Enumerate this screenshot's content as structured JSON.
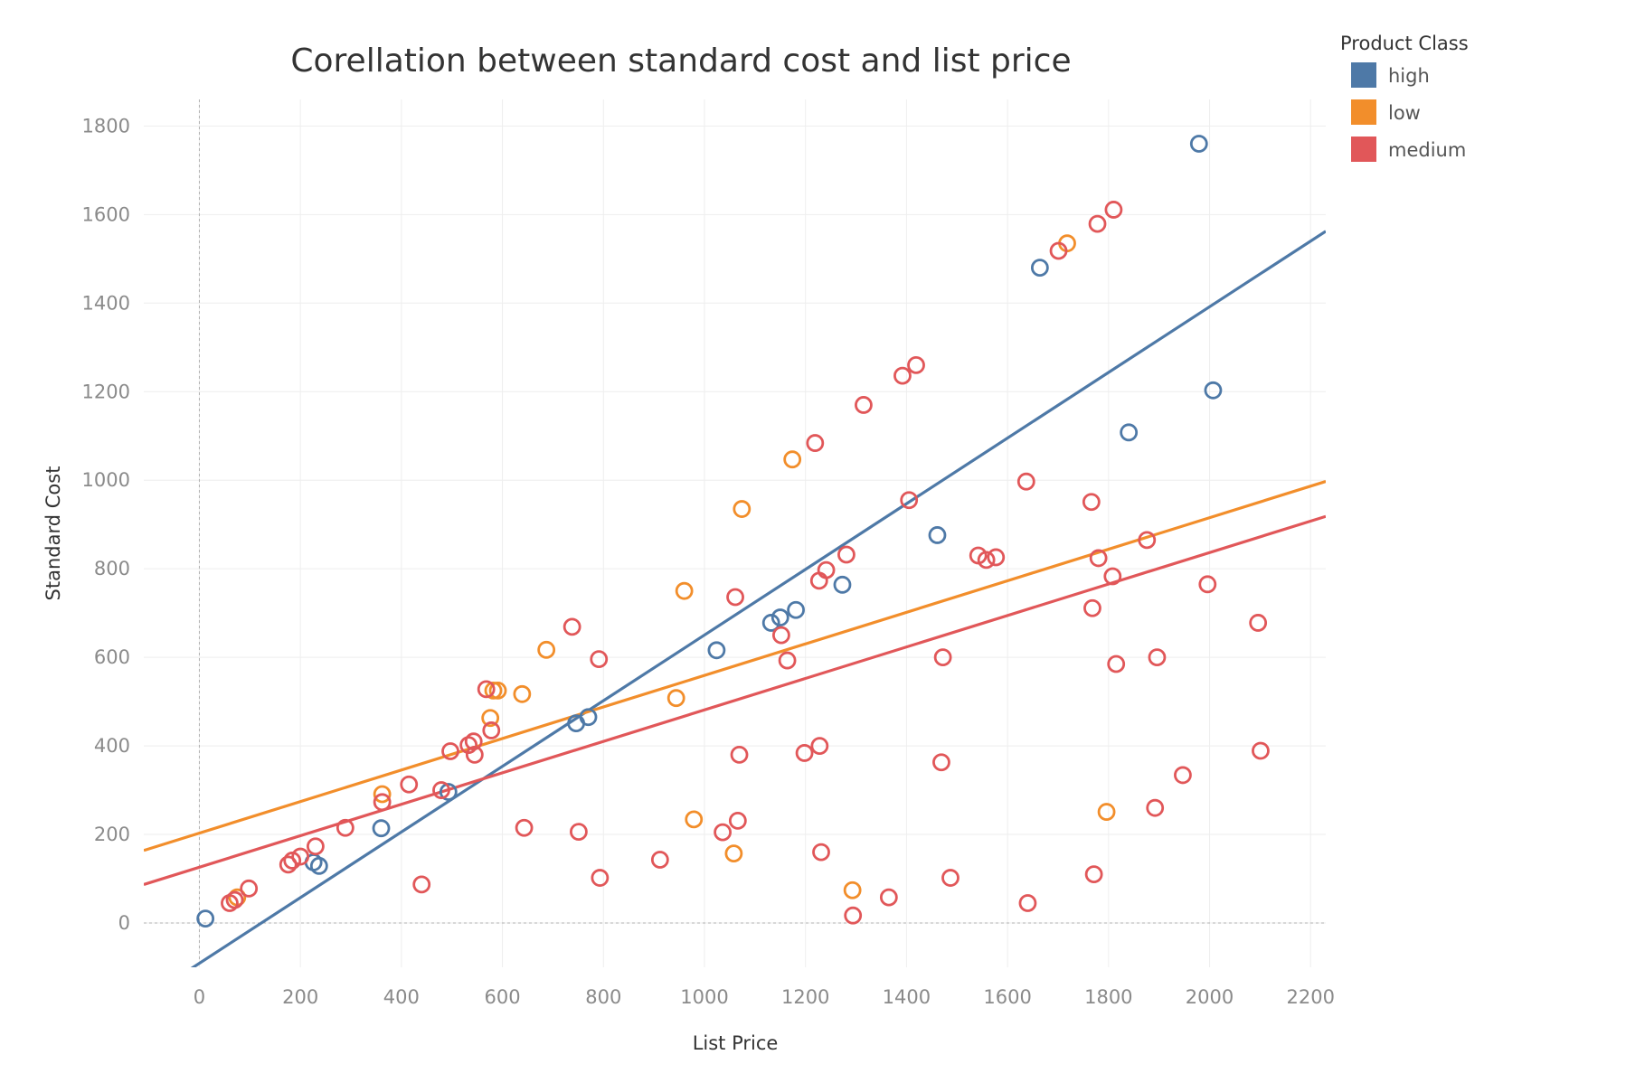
{
  "chart_data": {
    "type": "scatter",
    "title": "Corellation between standard cost and list price",
    "xlabel": "List Price",
    "ylabel": "Standard Cost",
    "xlim": [
      -110,
      2230
    ],
    "ylim": [
      -100,
      1860
    ],
    "xticks": [
      0,
      200,
      400,
      600,
      800,
      1000,
      1200,
      1400,
      1600,
      1800,
      2000,
      2200
    ],
    "yticks": [
      0,
      200,
      400,
      600,
      800,
      1000,
      1200,
      1400,
      1600,
      1800
    ],
    "grid": true,
    "legend": {
      "title": "Product Class",
      "placement": "top-right",
      "entries": [
        "high",
        "low",
        "medium"
      ]
    },
    "series": [
      {
        "name": "high",
        "color": "#4e79a7",
        "trend": {
          "slope": 0.7414,
          "intercept": -91
        },
        "points": [
          [
            12,
            10
          ],
          [
            226,
            137
          ],
          [
            237,
            129
          ],
          [
            360,
            214
          ],
          [
            493,
            296
          ],
          [
            746,
            451
          ],
          [
            770,
            465
          ],
          [
            1024,
            616
          ],
          [
            1132,
            678
          ],
          [
            1150,
            690
          ],
          [
            1181,
            707
          ],
          [
            1273,
            764
          ],
          [
            1461,
            876
          ],
          [
            1664,
            1480
          ],
          [
            1840,
            1108
          ],
          [
            1979,
            1760
          ],
          [
            2007,
            1203
          ]
        ]
      },
      {
        "name": "low",
        "color": "#f28e2b",
        "trend": {
          "slope": 0.3562,
          "intercept": 203
        },
        "points": [
          [
            75,
            58
          ],
          [
            362,
            291
          ],
          [
            576,
            463
          ],
          [
            582,
            525
          ],
          [
            591,
            525
          ],
          [
            639,
            517
          ],
          [
            687,
            617
          ],
          [
            944,
            508
          ],
          [
            960,
            750
          ],
          [
            979,
            234
          ],
          [
            1058,
            157
          ],
          [
            1074,
            935
          ],
          [
            1174,
            1047
          ],
          [
            1293,
            74
          ],
          [
            1718,
            1535
          ],
          [
            1796,
            251
          ]
        ]
      },
      {
        "name": "medium",
        "color": "#e15759",
        "trend": {
          "slope": 0.3553,
          "intercept": 126
        },
        "points": [
          [
            60,
            45
          ],
          [
            70,
            52
          ],
          [
            98,
            78
          ],
          [
            176,
            132
          ],
          [
            184,
            141
          ],
          [
            200,
            150
          ],
          [
            230,
            173
          ],
          [
            289,
            215
          ],
          [
            362,
            273
          ],
          [
            415,
            313
          ],
          [
            440,
            87
          ],
          [
            479,
            300
          ],
          [
            497,
            388
          ],
          [
            533,
            402
          ],
          [
            543,
            410
          ],
          [
            545,
            380
          ],
          [
            568,
            528
          ],
          [
            578,
            435
          ],
          [
            643,
            215
          ],
          [
            738,
            669
          ],
          [
            751,
            206
          ],
          [
            791,
            596
          ],
          [
            793,
            102
          ],
          [
            912,
            143
          ],
          [
            1036,
            205
          ],
          [
            1061,
            736
          ],
          [
            1066,
            231
          ],
          [
            1069,
            380
          ],
          [
            1152,
            650
          ],
          [
            1164,
            593
          ],
          [
            1198,
            384
          ],
          [
            1219,
            1084
          ],
          [
            1227,
            773
          ],
          [
            1228,
            400
          ],
          [
            1231,
            160
          ],
          [
            1241,
            797
          ],
          [
            1281,
            832
          ],
          [
            1294,
            17
          ],
          [
            1315,
            1170
          ],
          [
            1365,
            58
          ],
          [
            1392,
            1236
          ],
          [
            1405,
            955
          ],
          [
            1419,
            1260
          ],
          [
            1469,
            363
          ],
          [
            1472,
            600
          ],
          [
            1487,
            102
          ],
          [
            1542,
            830
          ],
          [
            1558,
            820
          ],
          [
            1577,
            826
          ],
          [
            1637,
            997
          ],
          [
            1640,
            45
          ],
          [
            1701,
            1518
          ],
          [
            1766,
            951
          ],
          [
            1768,
            711
          ],
          [
            1771,
            110
          ],
          [
            1778,
            1579
          ],
          [
            1780,
            824
          ],
          [
            1808,
            783
          ],
          [
            1810,
            1611
          ],
          [
            1815,
            585
          ],
          [
            1876,
            865
          ],
          [
            1892,
            260
          ],
          [
            1896,
            600
          ],
          [
            1947,
            334
          ],
          [
            1996,
            765
          ],
          [
            2096,
            678
          ],
          [
            2101,
            389
          ]
        ]
      }
    ]
  }
}
